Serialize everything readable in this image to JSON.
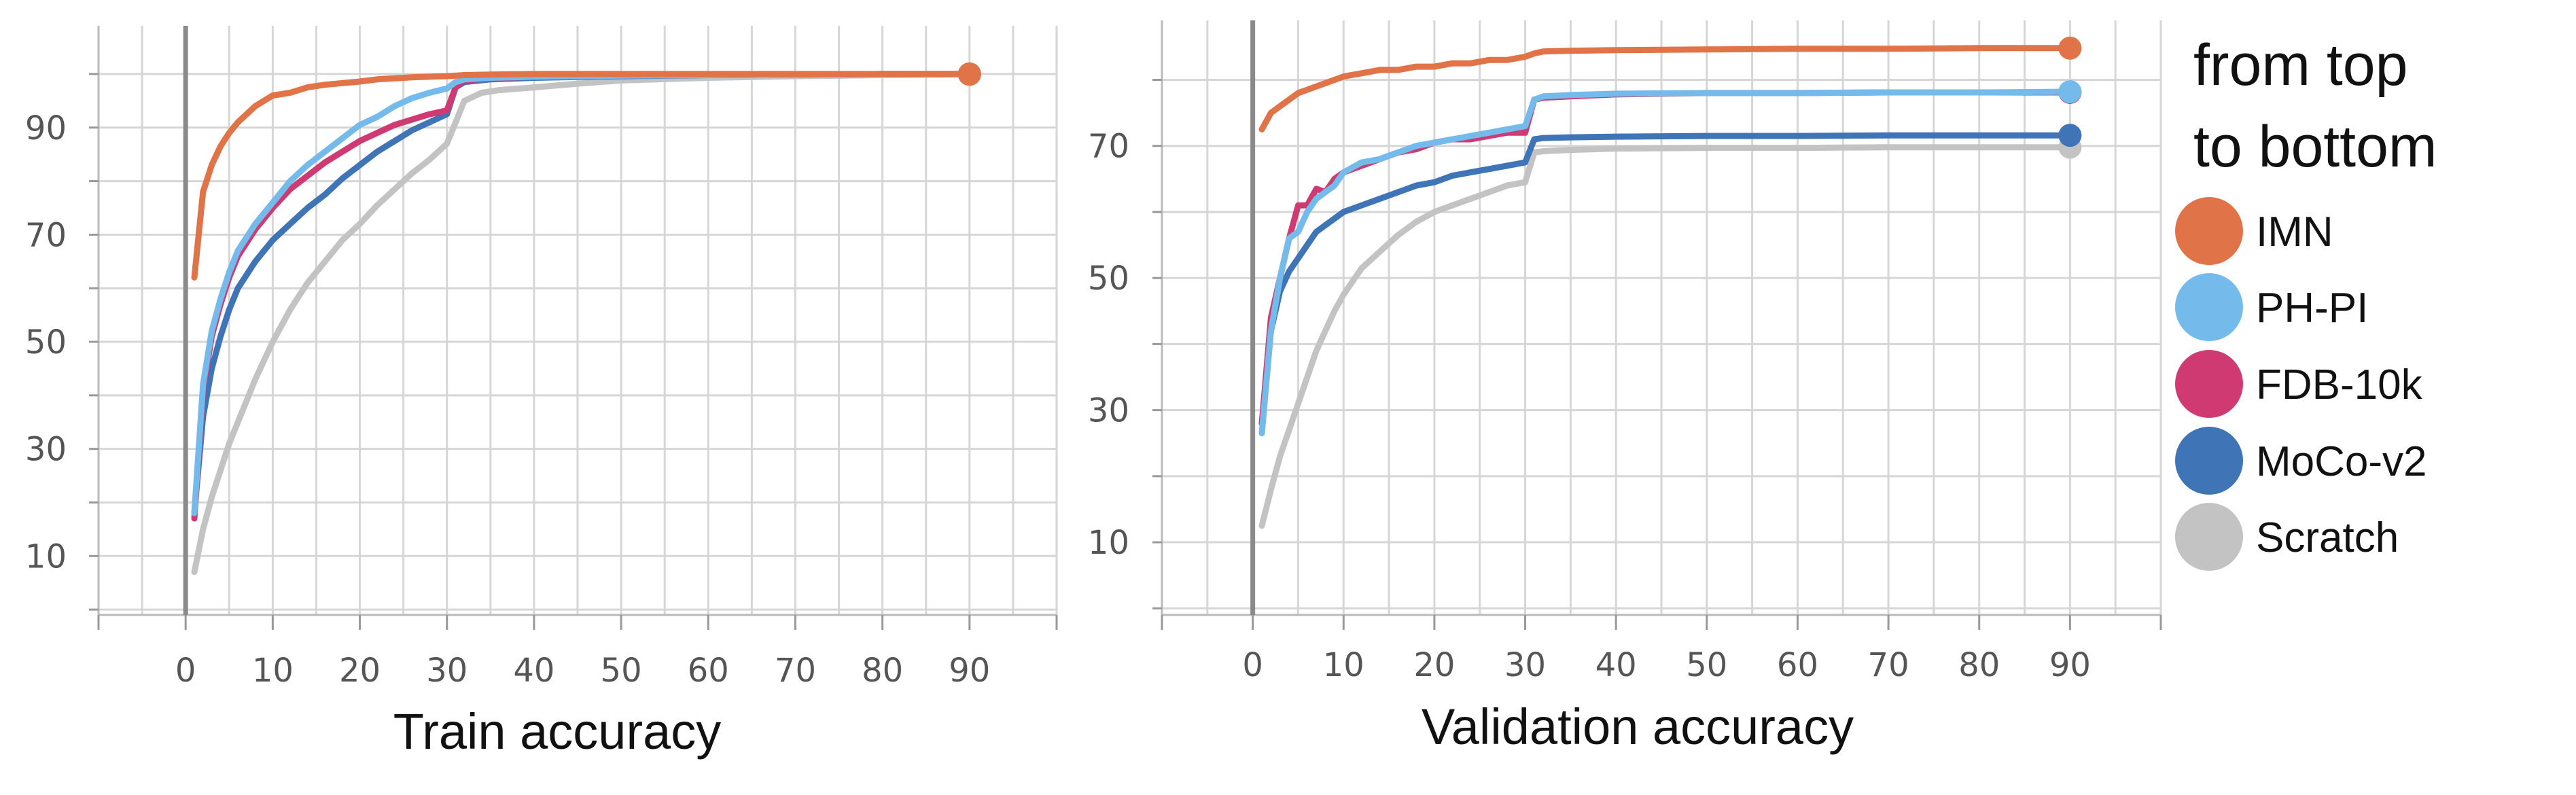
{
  "legend": {
    "title_lines": [
      "from top",
      "to bottom"
    ],
    "entries": [
      {
        "label": "IMN",
        "color": "#E07347"
      },
      {
        "label": "PH-PI",
        "color": "#74BBEC"
      },
      {
        "label": "FDB-10k",
        "color": "#CF3A72"
      },
      {
        "label": "MoCo-v2",
        "color": "#3F74B6"
      },
      {
        "label": "Scratch",
        "color": "#C3C3C3"
      }
    ]
  },
  "chart_data": [
    {
      "type": "line",
      "xlabel": "Train accuracy",
      "ylabel": "",
      "xlim": [
        -10,
        100
      ],
      "ylim": [
        -1,
        109
      ],
      "xticks": [
        0,
        10,
        20,
        30,
        40,
        50,
        60,
        70,
        80,
        90
      ],
      "yticks": [
        10,
        30,
        50,
        70,
        90
      ],
      "grid": true,
      "series": [
        {
          "name": "IMN",
          "color": "#E07347",
          "x": [
            1,
            2,
            3,
            4,
            5,
            6,
            7,
            8,
            9,
            10,
            12,
            14,
            16,
            18,
            20,
            22,
            24,
            26,
            28,
            30,
            32,
            35,
            40,
            50,
            60,
            70,
            80,
            90
          ],
          "y": [
            62,
            78,
            83,
            86.5,
            89,
            91,
            92.5,
            94,
            95,
            96,
            96.5,
            97.5,
            98,
            98.3,
            98.6,
            99,
            99.2,
            99.4,
            99.5,
            99.6,
            99.8,
            99.9,
            100,
            100,
            100,
            100,
            100,
            100
          ]
        },
        {
          "name": "PH-PI",
          "color": "#74BBEC",
          "x": [
            1,
            2,
            3,
            4,
            5,
            6,
            8,
            10,
            12,
            14,
            16,
            18,
            20,
            22,
            24,
            26,
            28,
            30,
            31,
            32,
            35,
            40,
            50,
            60,
            70,
            80,
            90
          ],
          "y": [
            18,
            42,
            52,
            58,
            63,
            67,
            72,
            76,
            80,
            83,
            85.5,
            88,
            90.5,
            92,
            94,
            95.5,
            96.5,
            97.3,
            98.5,
            99,
            99.3,
            99.5,
            99.7,
            99.8,
            99.9,
            100,
            100
          ]
        },
        {
          "name": "FDB-10k",
          "color": "#CF3A72",
          "x": [
            1,
            2,
            3,
            4,
            5,
            6,
            8,
            10,
            12,
            14,
            16,
            18,
            20,
            22,
            24,
            26,
            28,
            30,
            31,
            32,
            35,
            40,
            50,
            60,
            70,
            80,
            90
          ],
          "y": [
            17,
            41,
            51,
            57,
            62,
            66,
            71,
            75,
            78.5,
            81,
            83.5,
            85.5,
            87.5,
            89,
            90.5,
            91.5,
            92.5,
            93.2,
            97.5,
            98.8,
            99.2,
            99.5,
            99.7,
            99.8,
            99.9,
            100,
            100
          ]
        },
        {
          "name": "MoCo-v2",
          "color": "#3F74B6",
          "x": [
            1,
            2,
            3,
            4,
            5,
            6,
            8,
            10,
            12,
            14,
            16,
            18,
            20,
            22,
            24,
            26,
            28,
            30,
            31,
            32,
            35,
            40,
            50,
            60,
            70,
            80,
            90
          ],
          "y": [
            18,
            36,
            45,
            51,
            56,
            60,
            65,
            69,
            72,
            75,
            77.5,
            80.5,
            83,
            85.5,
            87.5,
            89.5,
            91,
            92.5,
            97.5,
            98.5,
            99,
            99.3,
            99.6,
            99.8,
            99.9,
            100,
            100
          ]
        },
        {
          "name": "Scratch",
          "color": "#C3C3C3",
          "x": [
            1,
            2,
            3,
            4,
            5,
            6,
            8,
            10,
            12,
            14,
            16,
            18,
            20,
            22,
            24,
            26,
            28,
            30,
            31,
            32,
            34,
            36,
            40,
            45,
            50,
            60,
            70,
            80,
            90
          ],
          "y": [
            7,
            15,
            21,
            26,
            31,
            35,
            43,
            50,
            56,
            61,
            65,
            69,
            72,
            75.5,
            78.5,
            81.5,
            84,
            87,
            91,
            95,
            96.5,
            97,
            97.5,
            98.2,
            98.8,
            99.3,
            99.6,
            99.8,
            99.9
          ]
        }
      ]
    },
    {
      "type": "line",
      "xlabel": "Validation accuracy",
      "ylabel": "",
      "xlim": [
        -10,
        100
      ],
      "ylim": [
        -1,
        89
      ],
      "xticks": [
        0,
        10,
        20,
        30,
        40,
        50,
        60,
        70,
        80,
        90
      ],
      "yticks": [
        10,
        30,
        50,
        70
      ],
      "grid": true,
      "series": [
        {
          "name": "IMN",
          "color": "#E07347",
          "x": [
            1,
            2,
            3,
            4,
            5,
            6,
            7,
            8,
            9,
            10,
            12,
            14,
            16,
            18,
            20,
            22,
            24,
            26,
            28,
            30,
            31,
            32,
            35,
            40,
            50,
            60,
            70,
            80,
            90
          ],
          "y": [
            72.5,
            75,
            76,
            77,
            78,
            78.5,
            79,
            79.5,
            80,
            80.5,
            81,
            81.5,
            81.5,
            82,
            82,
            82.5,
            82.5,
            83,
            83,
            83.5,
            84,
            84.3,
            84.4,
            84.5,
            84.6,
            84.7,
            84.7,
            84.8,
            84.8
          ]
        },
        {
          "name": "PH-PI",
          "color": "#74BBEC",
          "x": [
            1,
            2,
            3,
            4,
            5,
            6,
            7,
            8,
            9,
            10,
            12,
            14,
            16,
            18,
            20,
            22,
            24,
            26,
            28,
            30,
            31,
            32,
            35,
            40,
            50,
            60,
            70,
            80,
            90
          ],
          "y": [
            26.5,
            42,
            50,
            56,
            57,
            60,
            62,
            63,
            64,
            66,
            67.5,
            68,
            69,
            70,
            70.5,
            71,
            71.5,
            72,
            72.5,
            73,
            77,
            77.5,
            77.7,
            77.9,
            78,
            78,
            78.1,
            78.1,
            78.2
          ]
        },
        {
          "name": "FDB-10k",
          "color": "#CF3A72",
          "x": [
            1,
            2,
            3,
            4,
            5,
            6,
            7,
            8,
            9,
            10,
            12,
            14,
            16,
            18,
            20,
            22,
            24,
            26,
            28,
            30,
            31,
            32,
            35,
            40,
            50,
            60,
            70,
            80,
            90
          ],
          "y": [
            28,
            44,
            50,
            56,
            61,
            61,
            63.5,
            63,
            65,
            66,
            67,
            68,
            69,
            69.5,
            70.5,
            71,
            71,
            71.5,
            72,
            72,
            77,
            77.3,
            77.5,
            77.8,
            78,
            78,
            78.1,
            78.1,
            78.1
          ]
        },
        {
          "name": "MoCo-v2",
          "color": "#3F74B6",
          "x": [
            1,
            2,
            3,
            4,
            5,
            6,
            7,
            8,
            9,
            10,
            12,
            14,
            16,
            18,
            20,
            22,
            24,
            26,
            28,
            30,
            31,
            32,
            35,
            40,
            50,
            60,
            70,
            80,
            90
          ],
          "y": [
            28,
            42,
            48,
            51,
            53,
            55,
            57,
            58,
            59,
            60,
            61,
            62,
            63,
            64,
            64.5,
            65.5,
            66,
            66.5,
            67,
            67.5,
            71,
            71.2,
            71.3,
            71.4,
            71.5,
            71.5,
            71.6,
            71.6,
            71.6
          ]
        },
        {
          "name": "Scratch",
          "color": "#C3C3C3",
          "x": [
            1,
            2,
            3,
            4,
            5,
            6,
            7,
            8,
            9,
            10,
            12,
            14,
            16,
            18,
            20,
            22,
            24,
            26,
            28,
            30,
            31,
            32,
            35,
            40,
            50,
            60,
            70,
            80,
            90
          ],
          "y": [
            12.5,
            18,
            23,
            27,
            31,
            35,
            39,
            42,
            45,
            47.5,
            51.5,
            54,
            56.5,
            58.5,
            60,
            61,
            62,
            63,
            64,
            64.5,
            69,
            69.2,
            69.4,
            69.6,
            69.7,
            69.7,
            69.8,
            69.8,
            69.8
          ]
        }
      ]
    }
  ]
}
